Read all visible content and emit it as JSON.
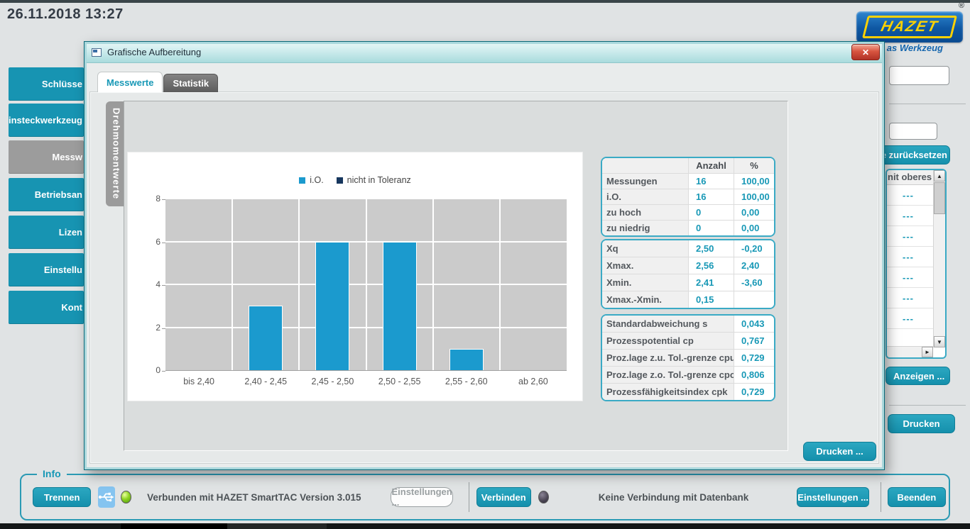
{
  "topbar": {
    "datetime": "26.11.2018 13:27"
  },
  "logo": {
    "text": "HAZET",
    "registered": "®",
    "slogan": "as Werkzeug"
  },
  "sidebar": {
    "items": [
      {
        "label": "Schlüsse",
        "active": false
      },
      {
        "label": "Einsteckwerkzeug",
        "active": false
      },
      {
        "label": "Messw",
        "active": true
      },
      {
        "label": "Betriebsan",
        "active": false
      },
      {
        "label": "Lizen",
        "active": false
      },
      {
        "label": "Einstellu",
        "active": false
      },
      {
        "label": "Kont",
        "active": false
      }
    ]
  },
  "dialog": {
    "title": "Grafische Aufbereitung",
    "close_glyph": "✕",
    "tabs": [
      {
        "label": "Messwerte",
        "active": true
      },
      {
        "label": "Statistik",
        "active": false
      }
    ],
    "vertical_tab": "Drehmomentwerte",
    "print_button": "Drucken ..."
  },
  "chart_data": {
    "type": "bar",
    "title": "",
    "categories": [
      "bis 2,40",
      "2,40 - 2,45",
      "2,45 - 2,50",
      "2,50 - 2,55",
      "2,55 - 2,60",
      "ab 2,60"
    ],
    "series": [
      {
        "name": "i.O.",
        "color": "#1b9ace",
        "values": [
          0,
          3,
          6,
          6,
          1,
          0
        ]
      },
      {
        "name": "nicht in Toleranz",
        "color": "#17375e",
        "values": [
          0,
          0,
          0,
          0,
          0,
          0
        ]
      }
    ],
    "xlabel": "",
    "ylabel": "",
    "ylim": [
      0,
      8
    ],
    "yticks": [
      0,
      2,
      4,
      6,
      8
    ],
    "grid": true,
    "legend_position": "top",
    "plot_bg": "#cbcbcb"
  },
  "stats": {
    "table1": {
      "headers": [
        "",
        "Anzahl",
        "%"
      ],
      "rows": [
        [
          "Messungen",
          "16",
          "100,00"
        ],
        [
          "i.O.",
          "16",
          "100,00"
        ],
        [
          "zu hoch",
          "0",
          "0,00"
        ],
        [
          "zu niedrig",
          "0",
          "0,00"
        ]
      ]
    },
    "table2": {
      "rows": [
        [
          "Xq",
          "2,50",
          "-0,20"
        ],
        [
          "Xmax.",
          "2,56",
          "2,40"
        ],
        [
          "Xmin.",
          "2,41",
          "-3,60"
        ],
        [
          "Xmax.-Xmin.",
          "0,15",
          ""
        ]
      ]
    },
    "table3": {
      "rows": [
        [
          "Standardabweichung s",
          "0,043"
        ],
        [
          "Prozesspotential cp",
          "0,767"
        ],
        [
          "Proz.lage z.u. Tol.-grenze cpu",
          "0,729"
        ],
        [
          "Proz.lage z.o. Tol.-grenze cpo",
          "0,806"
        ],
        [
          "Prozessfähigkeitsindex cpk",
          "0,729"
        ]
      ]
    }
  },
  "right_panel": {
    "reset_button": "e zurücksetzen",
    "list_header": "nit oberes Li",
    "list_rows": [
      "---",
      "---",
      "---",
      "---",
      "---",
      "---",
      "---"
    ],
    "show_button": "Anzeigen ...",
    "print_button": "Drucken"
  },
  "info_bar": {
    "legend": "Info",
    "disconnect_button": "Trennen",
    "device_status": "Verbunden mit HAZET SmartTAC Version 3.015",
    "device_settings_button": "Einstellungen ...",
    "connect_button": "Verbinden",
    "db_status": "Keine Verbindung mit Datenbank",
    "db_settings_button": "Einstellungen ...",
    "exit_button": "Beenden",
    "device_led_color": "#6fbf1d",
    "db_led_color": "#4a4553"
  },
  "icons": {
    "scroll_up": "▲",
    "scroll_down": "▼",
    "scroll_right": "►"
  },
  "colors": {
    "accent": "#1798b6",
    "bar_blue": "#1b9ace",
    "legend_navy": "#17375e",
    "table_border": "#3aaac5"
  }
}
